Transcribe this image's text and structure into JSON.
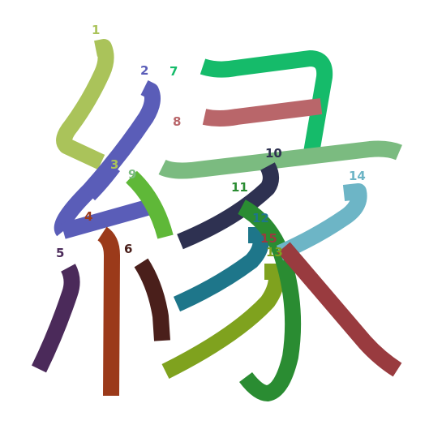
{
  "character": "緣",
  "strokes": [
    {
      "number": "1",
      "color": "#aac35a"
    },
    {
      "number": "2",
      "color": "#5a5db8"
    },
    {
      "number": "3",
      "color": "#5a5db8"
    },
    {
      "number": "4",
      "color": "#5a5db8"
    },
    {
      "number": "5",
      "color": "#4b2a5a"
    },
    {
      "number": "6",
      "color": "#4a1f1b"
    },
    {
      "number": "7",
      "color": "#15bb6a"
    },
    {
      "number": "8",
      "color": "#b9666a"
    },
    {
      "number": "9",
      "color": "#7bbb80"
    },
    {
      "number": "10",
      "color": "#2e3151"
    },
    {
      "number": "11",
      "color": "#1e768a"
    },
    {
      "number": "12",
      "color": "#7fa21e"
    },
    {
      "number": "13",
      "color": "#2a8c32"
    },
    {
      "number": "14",
      "color": "#6db5c6"
    },
    {
      "number": "15",
      "color": "#993b3f"
    }
  ],
  "labels": [
    {
      "text": "1",
      "color": "#aac35a"
    },
    {
      "text": "2",
      "color": "#5a5db8"
    },
    {
      "text": "3",
      "color": "#aac35a"
    },
    {
      "text": "4",
      "color": "#9b3a1a"
    },
    {
      "text": "5",
      "color": "#4b2a5a"
    },
    {
      "text": "6",
      "color": "#4a1f1b"
    },
    {
      "text": "7",
      "color": "#15bb6a"
    },
    {
      "text": "8",
      "color": "#b9666a"
    },
    {
      "text": "9",
      "color": "#7bbb80"
    },
    {
      "text": "10",
      "color": "#2e3151"
    },
    {
      "text": "11",
      "color": "#2a8c32"
    },
    {
      "text": "12",
      "color": "#1e768a"
    },
    {
      "text": "13",
      "color": "#7fa21e"
    },
    {
      "text": "14",
      "color": "#6db5c6"
    },
    {
      "text": "15",
      "color": "#993b3f"
    }
  ]
}
